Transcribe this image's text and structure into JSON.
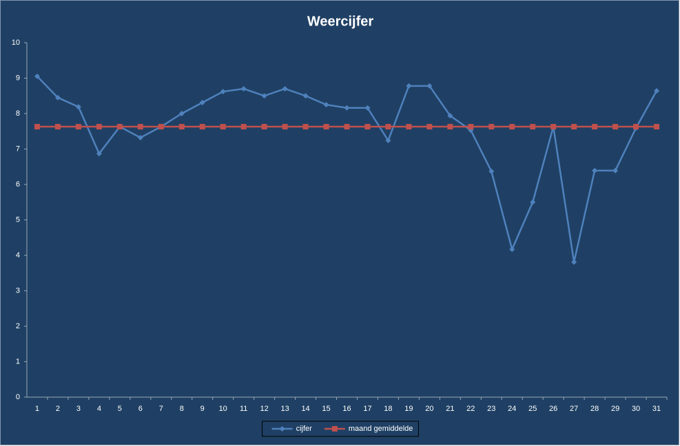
{
  "chart_data": {
    "type": "line",
    "title": "Weercijfer",
    "categories": [
      "1",
      "2",
      "3",
      "4",
      "5",
      "6",
      "7",
      "8",
      "9",
      "10",
      "11",
      "12",
      "13",
      "14",
      "15",
      "16",
      "17",
      "18",
      "19",
      "20",
      "21",
      "22",
      "23",
      "24",
      "25",
      "26",
      "27",
      "28",
      "29",
      "30",
      "31"
    ],
    "series": [
      {
        "name": "cijfer",
        "color": "#4f81bd",
        "marker": "diamond",
        "values": [
          9.05,
          8.45,
          8.19,
          6.87,
          7.63,
          7.32,
          7.63,
          8.0,
          8.31,
          8.62,
          8.7,
          8.5,
          8.7,
          8.5,
          8.25,
          8.16,
          8.16,
          7.24,
          8.78,
          8.78,
          7.94,
          7.53,
          6.37,
          4.17,
          5.5,
          7.63,
          3.81,
          6.39,
          6.39,
          7.59,
          8.64
        ]
      },
      {
        "name": "maand gemiddelde",
        "color": "#c0504d",
        "marker": "square",
        "values": [
          7.63,
          7.63,
          7.63,
          7.63,
          7.63,
          7.63,
          7.63,
          7.63,
          7.63,
          7.63,
          7.63,
          7.63,
          7.63,
          7.63,
          7.63,
          7.63,
          7.63,
          7.63,
          7.63,
          7.63,
          7.63,
          7.63,
          7.63,
          7.63,
          7.63,
          7.63,
          7.63,
          7.63,
          7.63,
          7.63,
          7.63
        ]
      }
    ],
    "ylim": [
      0,
      10
    ],
    "yticks": [
      0,
      1,
      2,
      3,
      4,
      5,
      6,
      7,
      8,
      9,
      10
    ],
    "grid": false,
    "legend": "bottom"
  }
}
